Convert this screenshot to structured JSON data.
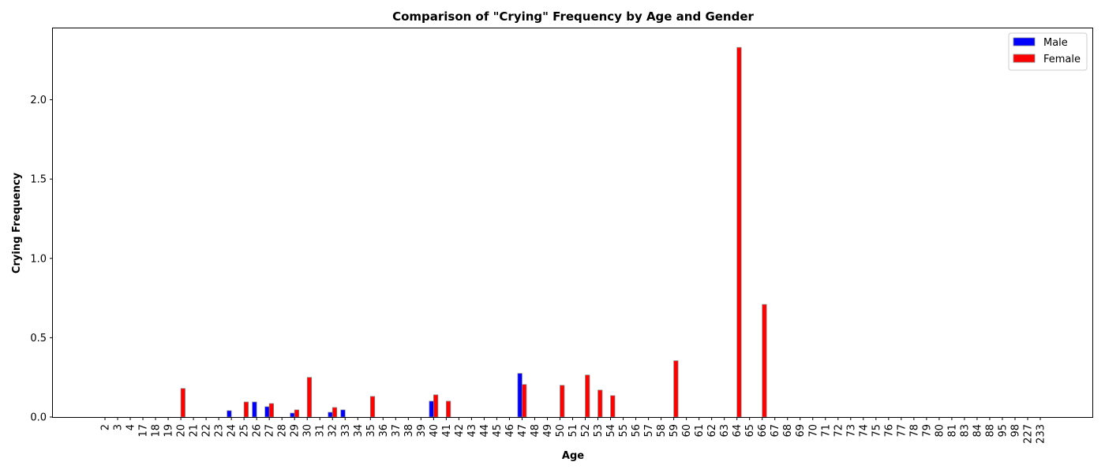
{
  "chart_data": {
    "type": "bar",
    "title": "Comparison of \"Crying\" Frequency by Age and Gender",
    "xlabel": "Age",
    "ylabel": "Crying Frequency",
    "ylim": [
      0,
      2.45
    ],
    "yticks": [
      "0.0",
      "0.5",
      "1.0",
      "1.5",
      "2.0"
    ],
    "grid": false,
    "legend_position": "top-right",
    "categories": [
      "2",
      "3",
      "4",
      "17",
      "18",
      "19",
      "20",
      "21",
      "22",
      "23",
      "24",
      "25",
      "26",
      "27",
      "28",
      "29",
      "30",
      "31",
      "32",
      "33",
      "34",
      "35",
      "36",
      "37",
      "38",
      "39",
      "40",
      "41",
      "42",
      "43",
      "44",
      "45",
      "46",
      "47",
      "48",
      "49",
      "50",
      "51",
      "52",
      "53",
      "54",
      "55",
      "56",
      "57",
      "58",
      "59",
      "60",
      "61",
      "62",
      "63",
      "64",
      "65",
      "66",
      "67",
      "68",
      "69",
      "70",
      "71",
      "72",
      "73",
      "74",
      "75",
      "76",
      "77",
      "78",
      "79",
      "80",
      "81",
      "83",
      "84",
      "88",
      "95",
      "98",
      "227",
      "233"
    ],
    "series": [
      {
        "name": "Male",
        "color": "#0000ff",
        "values": [
          0,
          0,
          0,
          0,
          0,
          0,
          0,
          0,
          0,
          0,
          0.04,
          0,
          0.095,
          0.065,
          0,
          0.025,
          0,
          0,
          0.03,
          0.045,
          0,
          0,
          0,
          0,
          0,
          0,
          0.1,
          0,
          0,
          0,
          0,
          0,
          0,
          0.275,
          0,
          0,
          0,
          0,
          0,
          0,
          0,
          0,
          0,
          0,
          0,
          0,
          0,
          0,
          0,
          0,
          0,
          0,
          0,
          0,
          0,
          0,
          0,
          0,
          0,
          0,
          0,
          0,
          0,
          0,
          0,
          0,
          0,
          0,
          0,
          0,
          0,
          0,
          0,
          0,
          0
        ]
      },
      {
        "name": "Female",
        "color": "#ff0000",
        "values": [
          0,
          0,
          0,
          0,
          0,
          0,
          0.18,
          0,
          0,
          0,
          0,
          0.095,
          0,
          0.085,
          0,
          0.045,
          0.25,
          0,
          0.06,
          0,
          0,
          0.13,
          0,
          0,
          0,
          0,
          0.14,
          0.1,
          0,
          0,
          0,
          0,
          0,
          0.205,
          0,
          0,
          0.2,
          0,
          0.265,
          0.17,
          0.135,
          0,
          0,
          0,
          0,
          0.355,
          0,
          0,
          0,
          0,
          2.33,
          0,
          0.71,
          0,
          0,
          0,
          0,
          0,
          0,
          0,
          0,
          0,
          0,
          0,
          0,
          0,
          0,
          0,
          0,
          0,
          0,
          0,
          0,
          0,
          0
        ]
      }
    ]
  }
}
